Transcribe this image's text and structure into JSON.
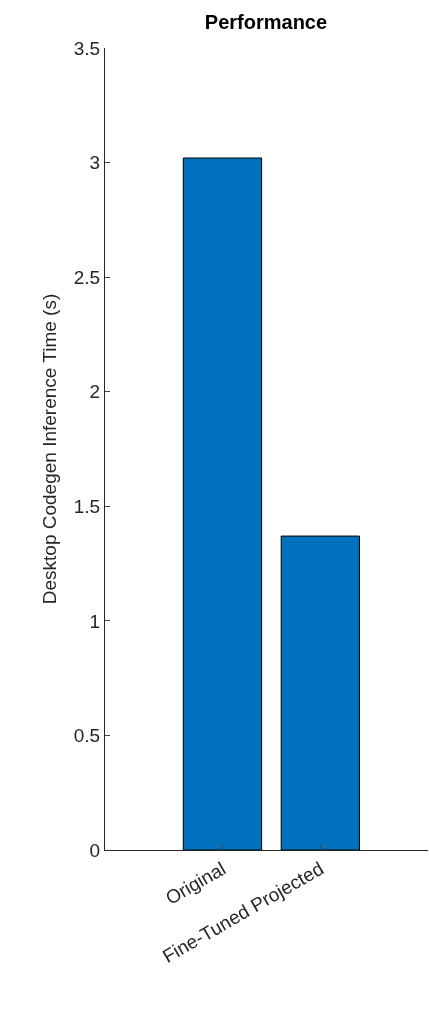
{
  "chart_data": {
    "type": "bar",
    "title": "Performance",
    "ylabel": "Desktop Codegen Inference Time (s)",
    "categories": [
      "Original",
      "Fine-Tuned Projected"
    ],
    "values": [
      3.02,
      1.37
    ],
    "color": "#0072bd",
    "ylim": [
      0,
      3.5
    ],
    "yticks": [
      0,
      0.5,
      1,
      1.5,
      2,
      2.5,
      3,
      3.5
    ],
    "grid": false
  }
}
